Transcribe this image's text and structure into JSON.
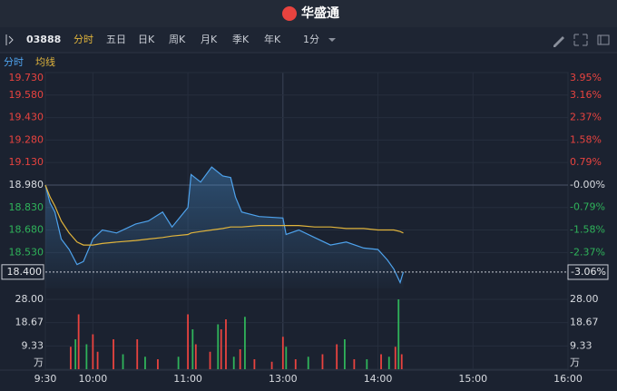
{
  "header": {
    "title": "华盛通"
  },
  "toolbar": {
    "symbol": "03888",
    "tabs": [
      "分时",
      "五日",
      "日K",
      "周K",
      "月K",
      "季K",
      "年K"
    ],
    "interval": "1分"
  },
  "chart_data": [
    {
      "type": "line",
      "x": [
        0,
        3,
        6,
        10,
        15,
        20,
        24,
        30,
        36,
        45,
        57,
        65,
        74,
        80,
        90,
        92,
        98,
        105,
        112,
        117,
        120,
        124,
        135,
        150,
        152,
        160,
        170,
        180,
        190,
        201,
        210,
        216,
        220,
        224,
        226
      ],
      "series": [
        {
          "name": "分时",
          "color": "#4ea2ec",
          "values": [
            18.98,
            18.86,
            18.8,
            18.62,
            18.55,
            18.45,
            18.47,
            18.62,
            18.68,
            18.66,
            18.72,
            18.74,
            18.8,
            18.7,
            18.83,
            19.05,
            19.0,
            19.1,
            19.04,
            19.03,
            18.9,
            18.8,
            18.77,
            18.76,
            18.65,
            18.68,
            18.63,
            18.58,
            18.6,
            18.56,
            18.55,
            18.48,
            18.42,
            18.33,
            18.4
          ]
        },
        {
          "name": "均线",
          "color": "#e0b43c",
          "values": [
            18.98,
            18.9,
            18.84,
            18.74,
            18.66,
            18.6,
            18.58,
            18.58,
            18.59,
            18.6,
            18.61,
            18.62,
            18.63,
            18.64,
            18.65,
            18.66,
            18.67,
            18.68,
            18.69,
            18.7,
            18.7,
            18.7,
            18.71,
            18.71,
            18.71,
            18.71,
            18.7,
            18.7,
            18.69,
            18.69,
            18.68,
            18.68,
            18.68,
            18.67,
            18.66
          ]
        }
      ],
      "xlim": [
        0,
        330
      ],
      "ylim": [
        18.29,
        19.73
      ],
      "yticks": [
        {
          "value": 19.73,
          "label": "19.730"
        },
        {
          "value": 19.58,
          "label": "19.580"
        },
        {
          "value": 19.43,
          "label": "19.430"
        },
        {
          "value": 19.28,
          "label": "19.280"
        },
        {
          "value": 19.13,
          "label": "19.130"
        },
        {
          "value": 18.98,
          "label": "18.980"
        },
        {
          "value": 18.83,
          "label": "18.830"
        },
        {
          "value": 18.68,
          "label": "18.680"
        },
        {
          "value": 18.53,
          "label": "18.530"
        }
      ],
      "y2lim": [
        -3.635,
        3.95
      ],
      "y2ticks": [
        {
          "value": 3.95,
          "label": "3.95%"
        },
        {
          "value": 3.16,
          "label": "3.16%"
        },
        {
          "value": 2.37,
          "label": "2.37%"
        },
        {
          "value": 1.58,
          "label": "1.58%"
        },
        {
          "value": 0.79,
          "label": "0.79%"
        },
        {
          "value": 0,
          "label": "-0.00%"
        },
        {
          "value": -0.79,
          "label": "-0.79%"
        },
        {
          "value": -1.58,
          "label": "-1.58%"
        },
        {
          "value": -2.37,
          "label": "-2.37%"
        }
      ],
      "last": {
        "value": 18.4,
        "label": "18.400"
      },
      "last_change": {
        "value": -3.06,
        "label": "-3.06%"
      }
    },
    {
      "type": "bar",
      "x": [
        16,
        19,
        21,
        26,
        30,
        33,
        43,
        49,
        58,
        63,
        71,
        84,
        90,
        93,
        95,
        104,
        109,
        111,
        114,
        119,
        123,
        126,
        132,
        143,
        150,
        152,
        158,
        166,
        175,
        184,
        189,
        195,
        203,
        212,
        217,
        221,
        223,
        225
      ],
      "values": [
        9,
        12,
        22,
        10,
        14,
        7,
        12,
        6,
        12,
        5,
        4,
        5,
        22,
        16,
        10,
        7,
        18,
        16,
        20,
        5,
        8,
        21,
        4,
        3,
        13,
        9,
        4,
        5,
        6,
        10,
        12,
        4,
        4,
        6,
        5,
        9,
        28,
        6
      ],
      "colors": [
        "#e8433f",
        "#2fb35a",
        "#e8433f",
        "#2fb35a",
        "#e8433f",
        "#e8433f",
        "#e8433f",
        "#2fb35a",
        "#e8433f",
        "#2fb35a",
        "#e8433f",
        "#2fb35a",
        "#e8433f",
        "#2fb35a",
        "#e8433f",
        "#e8433f",
        "#2fb35a",
        "#e8433f",
        "#e8433f",
        "#2fb35a",
        "#e8433f",
        "#2fb35a",
        "#e8433f",
        "#e8433f",
        "#e8433f",
        "#2fb35a",
        "#e8433f",
        "#2fb35a",
        "#e8433f",
        "#e8433f",
        "#2fb35a",
        "#e8433f",
        "#2fb35a",
        "#e8433f",
        "#2fb35a",
        "#e8433f",
        "#2fb35a",
        "#e8433f"
      ],
      "xlim": [
        0,
        330
      ],
      "xticks": [
        {
          "value": 0,
          "label": "9:30"
        },
        {
          "value": 30,
          "label": "10:00"
        },
        {
          "value": 90,
          "label": "11:00"
        },
        {
          "value": 150,
          "label": "13:00"
        },
        {
          "value": 210,
          "label": "14:00"
        },
        {
          "value": 270,
          "label": "15:00"
        },
        {
          "value": 330,
          "label": "16:00"
        }
      ],
      "ylim": [
        0,
        28
      ],
      "yticks": [
        {
          "value": 28,
          "label": "28.00"
        },
        {
          "value": 18.67,
          "label": "18.67"
        },
        {
          "value": 9.33,
          "label": "9.33"
        },
        {
          "value": 0,
          "label": "万"
        }
      ]
    }
  ]
}
